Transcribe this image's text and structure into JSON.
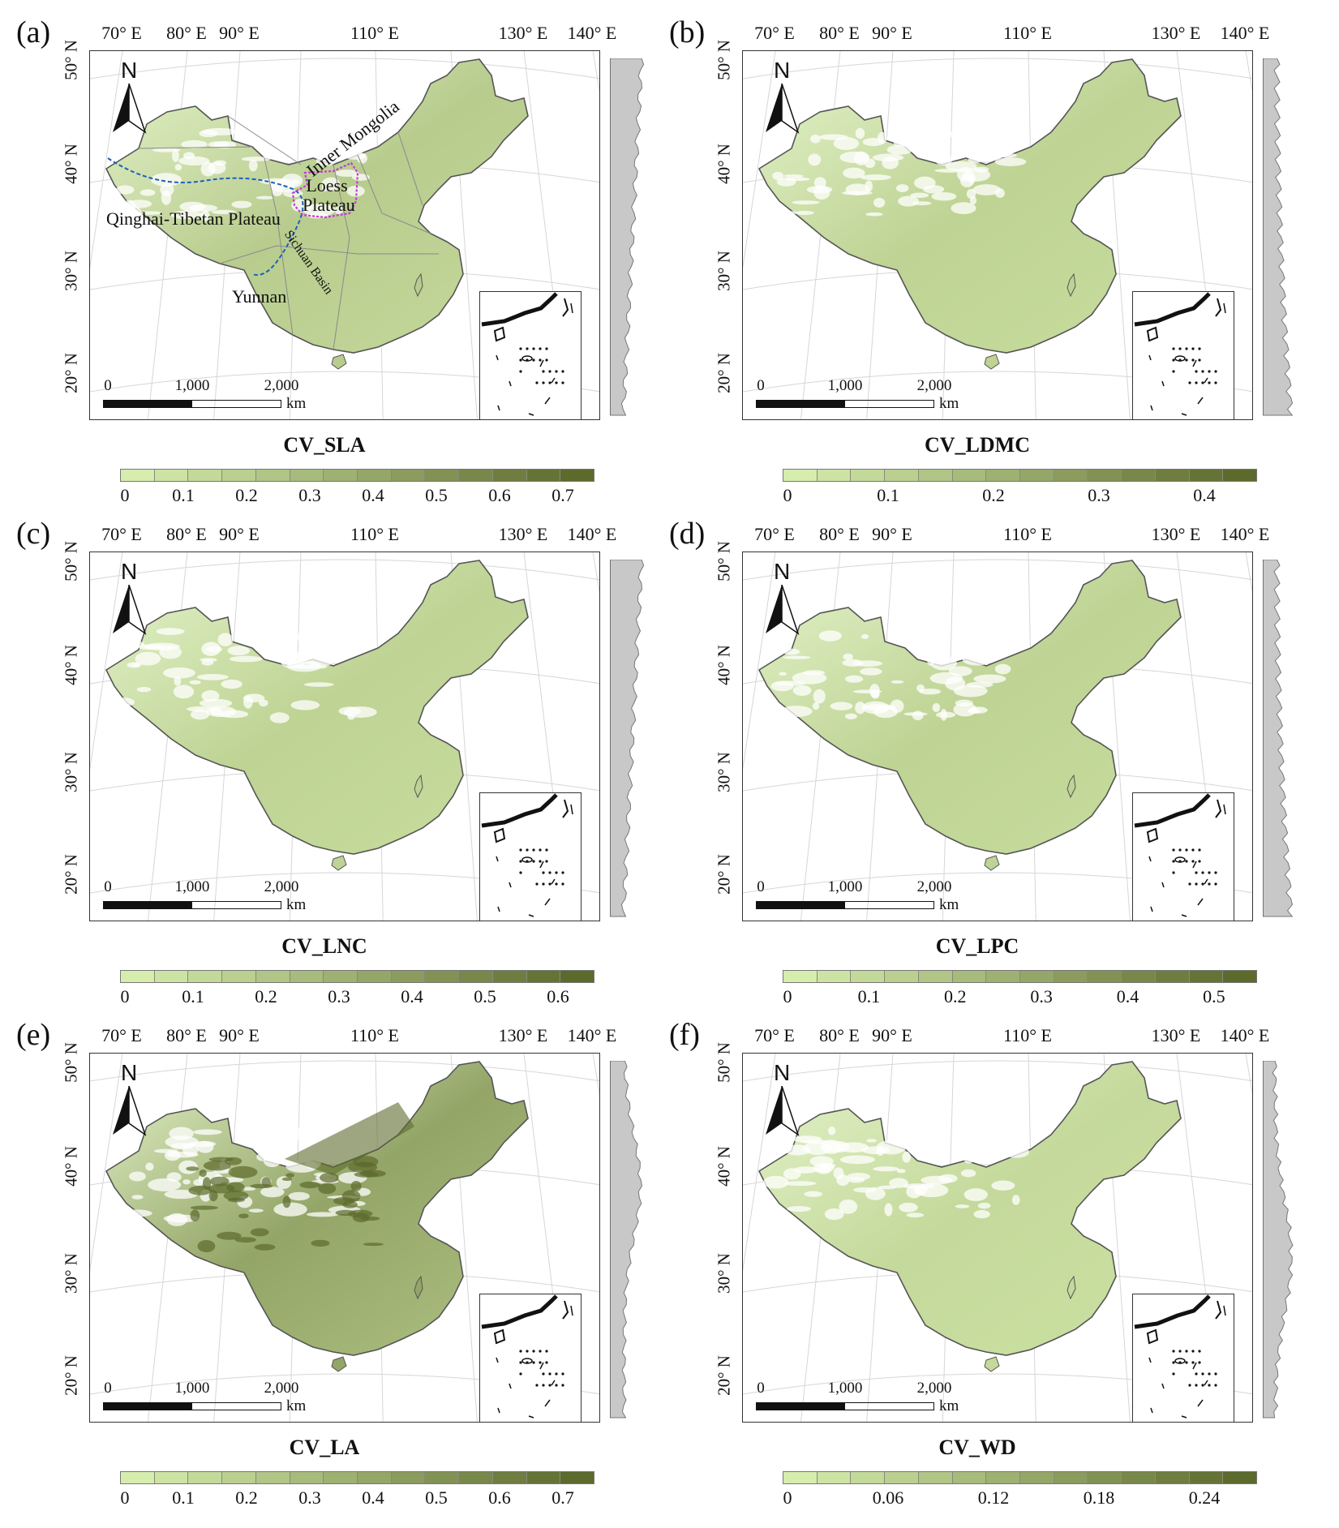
{
  "longitude_labels": [
    "70° E",
    "80° E",
    "90° E",
    "110° E",
    "130° E",
    "140° E"
  ],
  "latitude_labels": [
    "50° N",
    "40° N",
    "30° N",
    "20° N"
  ],
  "north_arrow": "N",
  "scale_bar": {
    "ticks": [
      "0",
      "1,000",
      "2,000"
    ],
    "unit": "km"
  },
  "region_labels": {
    "inner_mongolia": "Inner Mongolia",
    "loess_plateau": "Loess Plateau",
    "qinghai_tibetan": "Qinghai-Tibetan Plateau",
    "sichuan_basin": "Sichuan Basin",
    "yunnan": "Yunnan"
  },
  "colors": {
    "low": "#d6edae",
    "high": "#5c6a2c",
    "boundary": "#555555",
    "river": "#1f5fbf",
    "loess_outline": "#c43ad6",
    "profile_fill": "#c8c8c8"
  },
  "panels": [
    {
      "letter": "(a)",
      "title": "CV_SLA",
      "ticks": [
        "0",
        "0.1",
        "0.2",
        "0.3",
        "0.4",
        "0.5",
        "0.6",
        "0.7"
      ],
      "max": 0.75,
      "intensity": 0.25,
      "profile": "high-north",
      "show_regions": true
    },
    {
      "letter": "(b)",
      "title": "CV_LDMC",
      "ticks": [
        "0",
        "0.1",
        "0.2",
        "0.3",
        "0.4"
      ],
      "max": 0.45,
      "intensity": 0.2,
      "profile": "high-south",
      "show_regions": false
    },
    {
      "letter": "(c)",
      "title": "CV_LNC",
      "ticks": [
        "0",
        "0.1",
        "0.2",
        "0.3",
        "0.4",
        "0.5",
        "0.6"
      ],
      "max": 0.65,
      "intensity": 0.2,
      "profile": "high-north",
      "show_regions": false
    },
    {
      "letter": "(d)",
      "title": "CV_LPC",
      "ticks": [
        "0",
        "0.1",
        "0.2",
        "0.3",
        "0.4",
        "0.5"
      ],
      "max": 0.55,
      "intensity": 0.2,
      "profile": "high-south",
      "show_regions": false
    },
    {
      "letter": "(e)",
      "title": "CV_LA",
      "ticks": [
        "0",
        "0.1",
        "0.2",
        "0.3",
        "0.4",
        "0.5",
        "0.6",
        "0.7"
      ],
      "max": 0.75,
      "intensity": 0.55,
      "profile": "bulge-mid",
      "show_regions": false
    },
    {
      "letter": "(f)",
      "title": "CV_WD",
      "ticks": [
        "0",
        "0.06",
        "0.12",
        "0.18",
        "0.24"
      ],
      "max": 0.27,
      "intensity": 0.15,
      "profile": "bulge-south",
      "show_regions": false
    }
  ]
}
